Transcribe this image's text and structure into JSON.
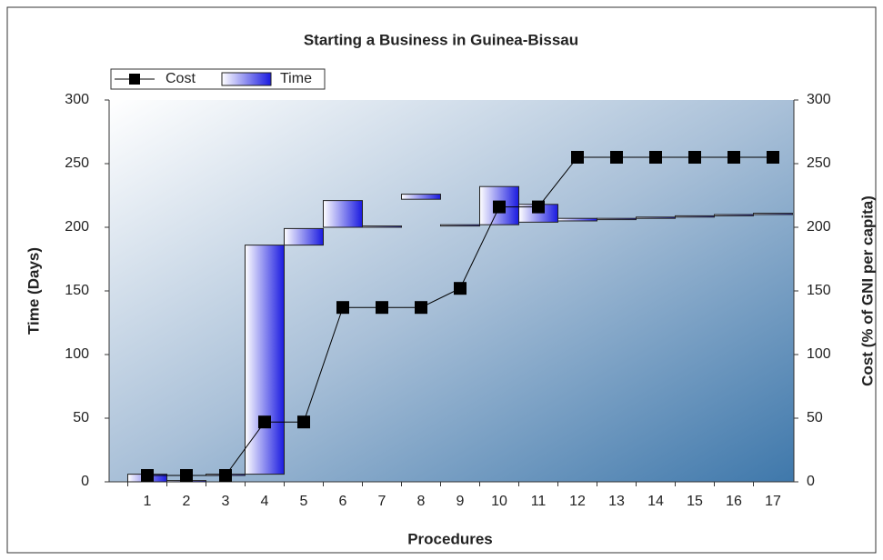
{
  "chart_data": {
    "type": "floating-bar-line",
    "title": "Starting a Business in Guinea-Bissau",
    "x_label": "Procedures",
    "y_label": "Time (Days)",
    "y2_label": "Cost (% of GNI per capita)",
    "categories": [
      "1",
      "2",
      "3",
      "4",
      "5",
      "6",
      "7",
      "8",
      "9",
      "10",
      "11",
      "12",
      "13",
      "14",
      "15",
      "16",
      "17"
    ],
    "series": [
      {
        "name": "Cost",
        "type": "line",
        "axis": "y2",
        "color": "#000000",
        "values": [
          5,
          5,
          5,
          47,
          47,
          137,
          137,
          137,
          152,
          216,
          216,
          255,
          255,
          255,
          255,
          255,
          255
        ]
      },
      {
        "name": "Time",
        "type": "floating-bar",
        "axis": "y",
        "color": "#1a1ae0",
        "start": [
          0,
          0,
          5,
          6,
          186,
          200,
          200,
          222,
          201,
          202,
          204,
          205,
          206,
          207,
          208,
          209,
          210
        ],
        "values": [
          6,
          1,
          1,
          180,
          13,
          21,
          1,
          4,
          1,
          30,
          14,
          2,
          1,
          1,
          1,
          1,
          1
        ]
      }
    ],
    "ylim": [
      0,
      300
    ],
    "yticks": [
      0,
      50,
      100,
      150,
      200,
      250,
      300
    ],
    "y2lim": [
      0,
      300
    ],
    "y2ticks": [
      0,
      50,
      100,
      150,
      200,
      250,
      300
    ],
    "legend": "top-left"
  }
}
